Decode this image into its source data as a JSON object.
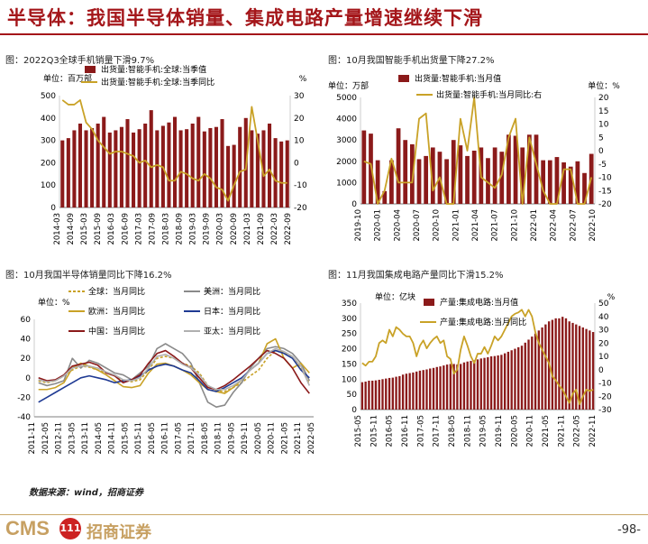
{
  "page": {
    "title": "半导体：我国半导体销量、集成电路产量增速继续下滑",
    "source": "数据来源：wind，招商证券",
    "brand": "CMS",
    "logo_text": "111",
    "firm": "招商证券",
    "page_number": "-98-"
  },
  "colors": {
    "bar": "#8b1a1a",
    "gold": "#c9a227",
    "title_red": "#a4161a"
  },
  "chart_data": [
    {
      "type": "bar",
      "title": "图：2022Q3全球手机销量下滑9.7%",
      "left_unit": "单位：百万部",
      "right_unit": "%",
      "legend_placement": "top",
      "ylim": [
        0,
        500
      ],
      "y2lim": [
        -20,
        30
      ],
      "yticks": [
        0,
        100,
        200,
        300,
        400,
        500
      ],
      "y2ticks": [
        -20,
        -10,
        0,
        10,
        20,
        30
      ],
      "xtick_labels": [
        "2014-03",
        "2014-09",
        "2015-03",
        "2015-09",
        "2016-03",
        "2016-09",
        "2017-03",
        "2017-09",
        "2018-03",
        "2018-09",
        "2019-03",
        "2019-09",
        "2020-03",
        "2020-09",
        "2021-03",
        "2021-09",
        "2022-03",
        "2022-09"
      ],
      "series": [
        {
          "name": "出货量:智能手机:全球:当季值",
          "kind": "bar",
          "axis": "left",
          "values": [
            300,
            310,
            345,
            375,
            345,
            355,
            375,
            405,
            335,
            345,
            360,
            395,
            335,
            350,
            375,
            435,
            345,
            365,
            380,
            405,
            345,
            350,
            375,
            405,
            340,
            355,
            360,
            395,
            275,
            280,
            360,
            400,
            345,
            330,
            345,
            375,
            310,
            295,
            300
          ]
        },
        {
          "name": "出货量:智能手机:全球:当季同比",
          "kind": "line",
          "axis": "right",
          "values": [
            28,
            26,
            26,
            28,
            18,
            15,
            10,
            7,
            4,
            5,
            5,
            4,
            3,
            0,
            1,
            -2,
            -1,
            -2,
            -8,
            -8,
            -4,
            -5,
            -7,
            -8,
            -5,
            -7,
            -11,
            -12,
            -17,
            -10,
            -4,
            -3,
            25,
            10,
            -6,
            -3,
            -8,
            -9,
            -9
          ]
        }
      ]
    },
    {
      "type": "bar",
      "title": "图：10月我国智能手机出货量下降27.2%",
      "left_unit": "单位：万部",
      "right_unit": "单位：%",
      "legend_placement": "top",
      "ylim": [
        0,
        5000
      ],
      "y2lim": [
        -20,
        20
      ],
      "yticks": [
        0,
        1000,
        2000,
        3000,
        4000,
        5000
      ],
      "y2ticks": [
        -20,
        -15,
        -10,
        -5,
        0,
        5,
        10,
        15,
        20
      ],
      "xtick_labels": [
        "2019-10",
        "2020-01",
        "2020-04",
        "2020-07",
        "2020-10",
        "2021-01",
        "2021-04",
        "2021-07",
        "2021-10",
        "2022-01",
        "2022-04",
        "2022-07",
        "2022-10"
      ],
      "series": [
        {
          "name": "出货量:智能手机:当月值",
          "kind": "bar",
          "axis": "left",
          "values": [
            3450,
            3300,
            2050,
            600,
            2050,
            3550,
            3000,
            2800,
            2100,
            2250,
            2650,
            2450,
            2100,
            3000,
            2750,
            2250,
            2500,
            2650,
            2150,
            2650,
            2450,
            3250,
            3200,
            2650,
            3250,
            3250,
            2050,
            2050,
            2200,
            1950,
            1750,
            2000,
            1450,
            2350
          ]
        },
        {
          "name": "出货量:智能手机:当月同比:右",
          "kind": "line",
          "axis": "right",
          "values": [
            -4,
            -5,
            -20,
            -15,
            -3,
            -12,
            -12,
            -12,
            12,
            14,
            -15,
            -10,
            -20,
            -20,
            12,
            0,
            20,
            -10,
            -12,
            -14,
            -9,
            5,
            12,
            -20,
            5,
            -5,
            -15,
            -20,
            -20,
            -7,
            -7,
            -20,
            -20,
            -10
          ]
        }
      ]
    },
    {
      "type": "line",
      "title": "图：10月我国半导体销量同比下降16.2%",
      "left_unit": "单位：%",
      "legend_placement": "top",
      "ylim": [
        -40,
        60
      ],
      "yticks": [
        -40,
        -20,
        0,
        20,
        40,
        60
      ],
      "xtick_labels": [
        "2011-11",
        "2012-05",
        "2012-11",
        "2013-05",
        "2013-11",
        "2014-05",
        "2014-11",
        "2015-05",
        "2015-11",
        "2016-05",
        "2016-11",
        "2017-05",
        "2017-11",
        "2018-05",
        "2018-11",
        "2019-05",
        "2019-11",
        "2020-05",
        "2020-11",
        "2021-05",
        "2021-11",
        "2022-05"
      ],
      "series": [
        {
          "name": "全球：当月同比",
          "kind": "line",
          "color": "#c9a227",
          "dashed": true,
          "values": [
            -3,
            -5,
            -3,
            2,
            8,
            12,
            11,
            8,
            5,
            2,
            -3,
            -4,
            -2,
            8,
            20,
            22,
            20,
            15,
            12,
            5,
            -8,
            -13,
            -14,
            -10,
            -5,
            2,
            8,
            20,
            28,
            26,
            22,
            10,
            -6
          ]
        },
        {
          "name": "美洲：当月同比",
          "kind": "line",
          "color": "#8a8a8a",
          "values": [
            -5,
            -8,
            -6,
            -3,
            20,
            10,
            18,
            15,
            10,
            5,
            3,
            -2,
            5,
            12,
            30,
            35,
            30,
            25,
            15,
            -5,
            -25,
            -30,
            -28,
            -15,
            -5,
            10,
            20,
            30,
            32,
            30,
            25,
            15,
            -3
          ]
        },
        {
          "name": "欧洲：当月同比",
          "kind": "line",
          "color": "#c9a227",
          "values": [
            -12,
            -12,
            -10,
            -5,
            10,
            15,
            12,
            8,
            3,
            -3,
            -9,
            -10,
            -8,
            5,
            14,
            15,
            12,
            8,
            3,
            -5,
            -12,
            -14,
            -16,
            -10,
            -2,
            8,
            15,
            35,
            40,
            20,
            10,
            15,
            5
          ]
        },
        {
          "name": "日本：当月同比",
          "kind": "line",
          "color": "#1f3a93",
          "values": [
            -25,
            -20,
            -15,
            -10,
            -5,
            0,
            2,
            0,
            -2,
            -5,
            -3,
            -2,
            2,
            8,
            12,
            14,
            12,
            8,
            5,
            -3,
            -12,
            -14,
            -10,
            -5,
            0,
            8,
            15,
            25,
            28,
            25,
            20,
            8,
            0
          ]
        },
        {
          "name": "中国：当月同比",
          "kind": "line",
          "color": "#8b1a1a",
          "values": [
            0,
            -3,
            -2,
            3,
            12,
            14,
            16,
            13,
            5,
            2,
            -5,
            -2,
            3,
            15,
            25,
            28,
            22,
            15,
            10,
            0,
            -10,
            -12,
            -8,
            -2,
            5,
            12,
            20,
            28,
            25,
            20,
            10,
            -5,
            -16
          ]
        },
        {
          "name": "亚太：当月同比",
          "kind": "line",
          "color": "#b0b0b0",
          "values": [
            -2,
            -4,
            -3,
            2,
            10,
            12,
            12,
            10,
            6,
            3,
            -2,
            -3,
            0,
            10,
            22,
            24,
            20,
            14,
            10,
            3,
            -8,
            -12,
            -12,
            -8,
            -2,
            8,
            15,
            25,
            30,
            27,
            22,
            12,
            -8
          ]
        }
      ]
    },
    {
      "type": "bar",
      "title": "图：11月我国集成电路产量同比下滑15.2%",
      "left_unit": "单位：亿块",
      "right_unit": "%",
      "legend_placement": "top",
      "ylim": [
        0,
        350
      ],
      "y2lim": [
        -30,
        50
      ],
      "yticks": [
        0,
        50,
        100,
        150,
        200,
        250,
        300,
        350
      ],
      "y2ticks": [
        -30,
        -20,
        -10,
        0,
        10,
        20,
        30,
        40,
        50
      ],
      "xtick_labels": [
        "2015-05",
        "2015-11",
        "2016-05",
        "2016-11",
        "2017-05",
        "2017-11",
        "2018-05",
        "2018-11",
        "2019-05",
        "2019-11",
        "2020-05",
        "2020-11",
        "2021-05",
        "2021-11",
        "2022-05",
        "2022-11"
      ],
      "series": [
        {
          "name": "产量:集成电路:当月值",
          "kind": "bar",
          "axis": "left",
          "values": [
            90,
            92,
            95,
            95,
            96,
            98,
            100,
            102,
            104,
            105,
            108,
            110,
            115,
            118,
            120,
            122,
            125,
            128,
            130,
            132,
            135,
            137,
            140,
            142,
            145,
            148,
            150,
            150,
            148,
            150,
            155,
            158,
            160,
            162,
            165,
            168,
            170,
            172,
            175,
            176,
            178,
            180,
            185,
            190,
            195,
            200,
            205,
            210,
            220,
            230,
            240,
            250,
            260,
            270,
            280,
            290,
            295,
            300,
            300,
            305,
            300,
            290,
            285,
            280,
            275,
            270,
            265,
            260,
            255
          ]
        },
        {
          "name": "产量:集成电路:当月同比",
          "kind": "line",
          "axis": "right",
          "values": [
            5,
            3,
            6,
            6,
            10,
            20,
            22,
            20,
            30,
            25,
            32,
            30,
            27,
            25,
            25,
            20,
            10,
            18,
            22,
            16,
            20,
            23,
            25,
            20,
            22,
            10,
            8,
            -3,
            0,
            15,
            25,
            18,
            10,
            5,
            12,
            12,
            17,
            12,
            18,
            25,
            22,
            25,
            30,
            35,
            40,
            42,
            43,
            45,
            40,
            45,
            40,
            28,
            20,
            15,
            10,
            5,
            -5,
            -8,
            -12,
            -15,
            -20,
            -25,
            -18,
            -15,
            -26,
            -20,
            -15,
            -16,
            -15
          ]
        }
      ]
    }
  ]
}
